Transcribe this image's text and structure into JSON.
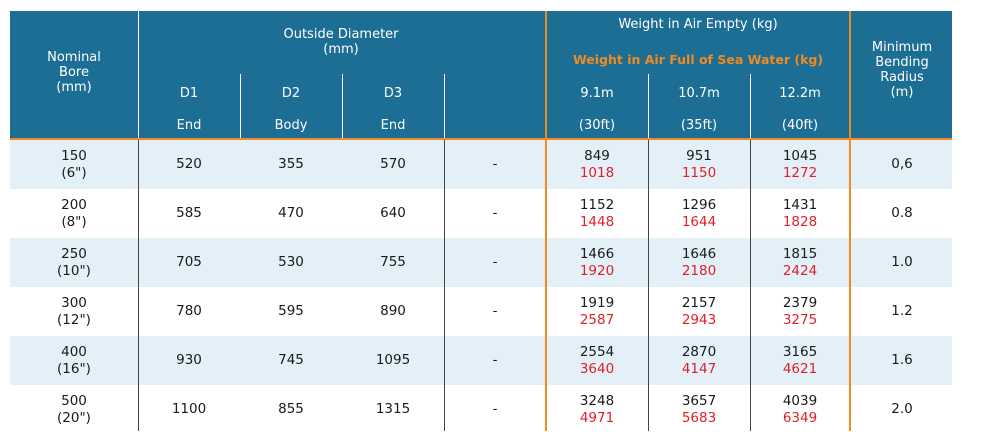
{
  "header": {
    "nominal_bore": "Nominal\nBore\n(mm)",
    "outside_diameter": "Outside Diameter\n(mm)",
    "weight_empty": "Weight in Air Empty (kg)",
    "weight_full": "Weight in Air Full of Sea Water (kg)",
    "min_bending": "Minimum\nBending\nRadius\n(m)",
    "d1": "D1",
    "d2": "D2",
    "d3": "D3",
    "d1_sub": "End",
    "d2_sub": "Body",
    "d3_sub": "End",
    "len1": "9.1m",
    "len2": "10.7m",
    "len3": "12.2m",
    "len1_ft": "(30ft)",
    "len2_ft": "(35ft)",
    "len3_ft": "(40ft)"
  },
  "rows": [
    {
      "bore": "150",
      "bore_in": "(6\")",
      "d1": "520",
      "d2": "355",
      "d3": "570",
      "extra": "-",
      "w1": "849",
      "w1f": "1018",
      "w2": "951",
      "w2f": "1150",
      "w3": "1045",
      "w3f": "1272",
      "radius": "0,6"
    },
    {
      "bore": "200",
      "bore_in": "(8\")",
      "d1": "585",
      "d2": "470",
      "d3": "640",
      "extra": "-",
      "w1": "1152",
      "w1f": "1448",
      "w2": "1296",
      "w2f": "1644",
      "w3": "1431",
      "w3f": "1828",
      "radius": "0.8"
    },
    {
      "bore": "250",
      "bore_in": "(10\")",
      "d1": "705",
      "d2": "530",
      "d3": "755",
      "extra": "-",
      "w1": "1466",
      "w1f": "1920",
      "w2": "1646",
      "w2f": "2180",
      "w3": "1815",
      "w3f": "2424",
      "radius": "1.0"
    },
    {
      "bore": "300",
      "bore_in": "(12\")",
      "d1": "780",
      "d2": "595",
      "d3": "890",
      "extra": "-",
      "w1": "1919",
      "w1f": "2587",
      "w2": "2157",
      "w2f": "2943",
      "w3": "2379",
      "w3f": "3275",
      "radius": "1.2"
    },
    {
      "bore": "400",
      "bore_in": "(16\")",
      "d1": "930",
      "d2": "745",
      "d3": "1095",
      "extra": "-",
      "w1": "2554",
      "w1f": "3640",
      "w2": "2870",
      "w2f": "4147",
      "w3": "3165",
      "w3f": "4621",
      "radius": "1.6"
    },
    {
      "bore": "500",
      "bore_in": "(20\")",
      "d1": "1100",
      "d2": "855",
      "d3": "1315",
      "extra": "-",
      "w1": "3248",
      "w1f": "4971",
      "w2": "3657",
      "w2f": "5683",
      "w3": "4039",
      "w3f": "6349",
      "radius": "2.0"
    }
  ],
  "colors": {
    "header_bg": "#1d6e95",
    "accent": "#f08a21",
    "stripe": "#e3f0f8",
    "full_value": "#e0202a"
  }
}
